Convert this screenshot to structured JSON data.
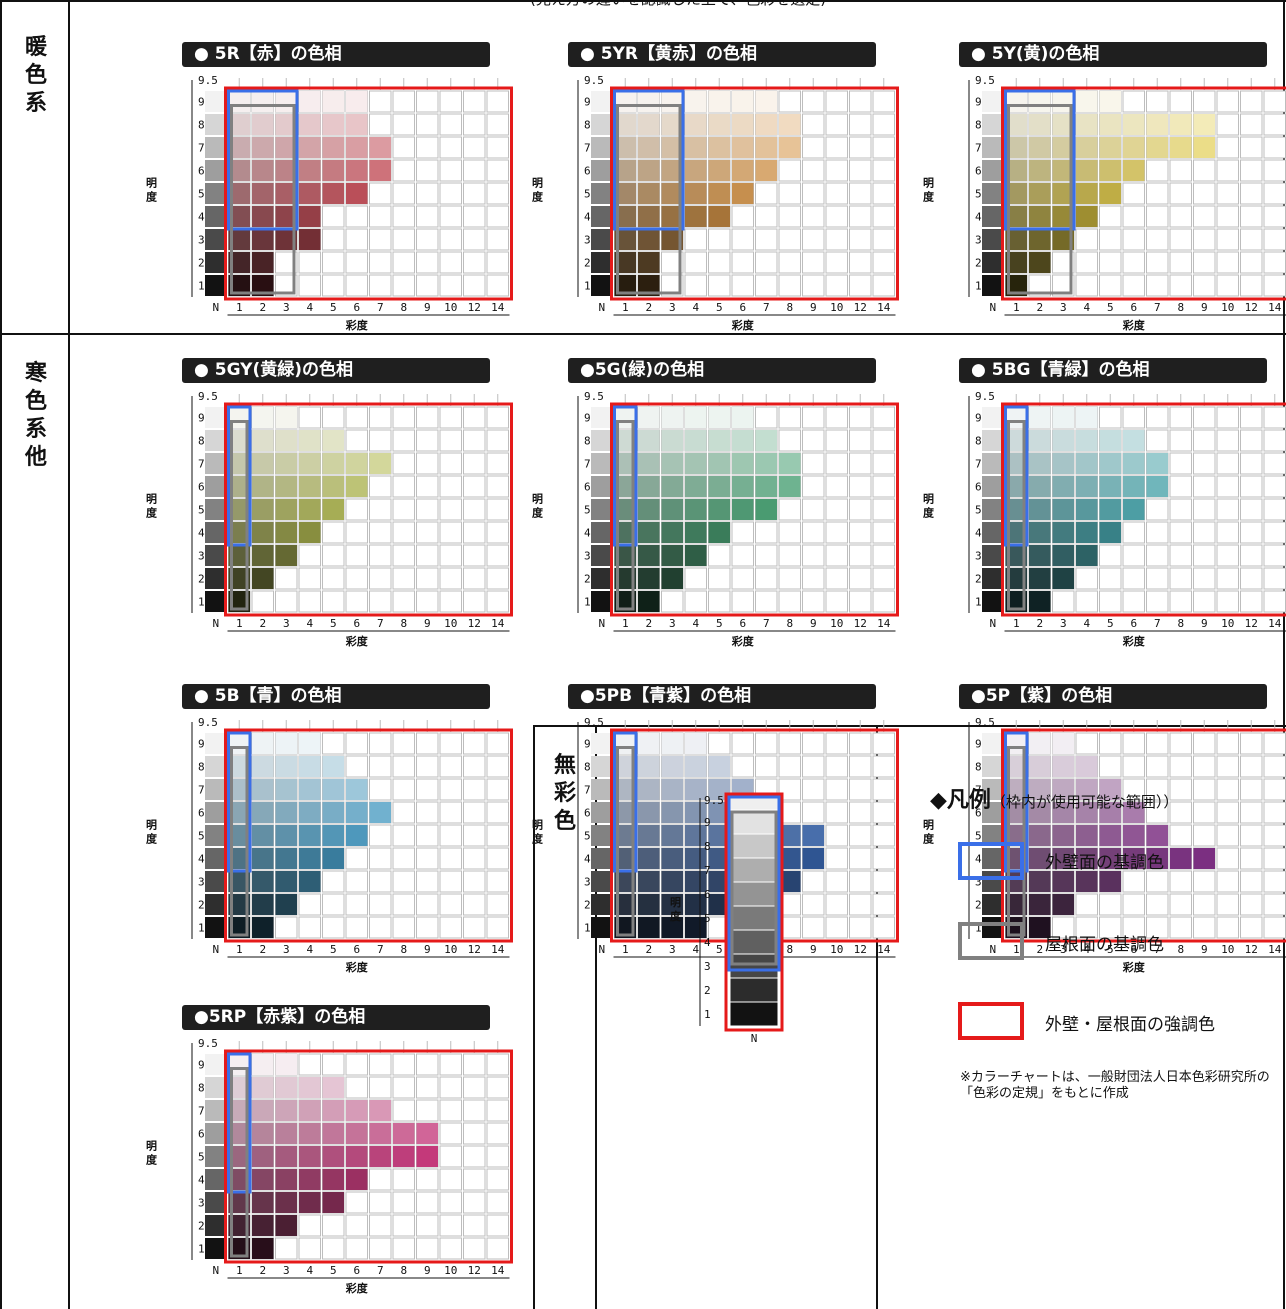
{
  "header_partial": "(見え方の違いを認識した上で、色彩を選定)",
  "sections": {
    "warm": "暖色系",
    "cool": "寒色系他",
    "neutral": "無彩色"
  },
  "axis": {
    "y_label": "明度",
    "x_label": "彩度",
    "y_ticks": [
      "9.5",
      "9",
      "8",
      "7",
      "6",
      "5",
      "4",
      "3",
      "2",
      "1"
    ],
    "x_ticks": [
      "N",
      "1",
      "2",
      "3",
      "4",
      "5",
      "6",
      "7",
      "8",
      "9",
      "10",
      "12",
      "14"
    ]
  },
  "colors": {
    "exterior_base": "#3a6fe8",
    "roof_base": "#808080",
    "accent": "#e51a1a"
  },
  "legend": {
    "title": "◆凡例",
    "note": "（枠内が使用可能な範囲））",
    "items": [
      {
        "label": "外壁面の基調色",
        "color": "#3a6fe8"
      },
      {
        "label": "屋根面の基調色",
        "color": "#808080"
      },
      {
        "label": "外壁・屋根面の強調色",
        "color": "#e51a1a"
      }
    ],
    "footnote": "※カラーチャートは、一般財団法人日本色彩研究所の「色彩の定規」をもとに作成"
  },
  "chart_data": [
    {
      "type": "heatmap",
      "title": "● 5R【赤】の色相",
      "hue_color": "#d21f2f",
      "max_chroma": [
        2,
        2,
        4,
        4,
        6,
        7,
        7,
        6,
        6
      ],
      "ranges": {
        "exterior": {
          "chroma": [
            0.5,
            2.5
          ],
          "value": [
            3.5,
            9
          ]
        },
        "roof": {
          "chroma": [
            0.5,
            2.5
          ],
          "value": [
            0.5,
            8.5
          ]
        },
        "accent": {
          "chroma": [
            0.5,
            14
          ],
          "value": [
            0.5,
            9
          ]
        }
      }
    },
    {
      "type": "heatmap",
      "title": "● 5YR【黄赤】の色相",
      "hue_color": "#e78a1c",
      "max_chroma": [
        2,
        2,
        3,
        5,
        6,
        7,
        8,
        8,
        7
      ],
      "ranges": {
        "exterior": {
          "chroma": [
            0.5,
            2.5
          ],
          "value": [
            3.5,
            9
          ]
        },
        "roof": {
          "chroma": [
            0.5,
            2.5
          ],
          "value": [
            0.5,
            8.5
          ]
        },
        "accent": {
          "chroma": [
            0.5,
            14
          ],
          "value": [
            0.5,
            9
          ]
        }
      }
    },
    {
      "type": "heatmap",
      "title": "● 5Y(黄)の色相",
      "hue_color": "#e6c500",
      "max_chroma": [
        1,
        2,
        3,
        4,
        5,
        6,
        9,
        9,
        5
      ],
      "ranges": {
        "exterior": {
          "chroma": [
            0.5,
            2.5
          ],
          "value": [
            3.5,
            9
          ]
        },
        "roof": {
          "chroma": [
            0.5,
            2.5
          ],
          "value": [
            0.5,
            8.5
          ]
        },
        "accent": {
          "chroma": [
            0.5,
            14
          ],
          "value": [
            0.5,
            9
          ]
        }
      }
    },
    {
      "type": "heatmap",
      "title": "● 5GY(黄緑)の色相",
      "hue_color": "#b8c41f",
      "max_chroma": [
        1,
        2,
        3,
        4,
        5,
        6,
        7,
        5,
        3
      ],
      "ranges": {
        "exterior": {
          "chroma": [
            0.5,
            2
          ],
          "value": [
            3.5,
            9
          ]
        },
        "roof": {
          "chroma": [
            0.5,
            2
          ],
          "value": [
            0.5,
            8.5
          ]
        },
        "accent": {
          "chroma": [
            0.5,
            14
          ],
          "value": [
            0.5,
            9
          ]
        }
      }
    },
    {
      "type": "heatmap",
      "title": "●5G(緑)の色相",
      "hue_color": "#1f9a5a",
      "max_chroma": [
        2,
        3,
        4,
        5,
        7,
        8,
        8,
        7,
        6
      ],
      "ranges": {
        "exterior": {
          "chroma": [
            0.5,
            2
          ],
          "value": [
            3.5,
            9
          ]
        },
        "roof": {
          "chroma": [
            0.5,
            2
          ],
          "value": [
            0.5,
            8.5
          ]
        },
        "accent": {
          "chroma": [
            0.5,
            14
          ],
          "value": [
            0.5,
            9
          ]
        }
      }
    },
    {
      "type": "heatmap",
      "title": "● 5BG【青緑】の色相",
      "hue_color": "#1aa3ad",
      "max_chroma": [
        2,
        3,
        4,
        5,
        6,
        7,
        7,
        6,
        4
      ],
      "ranges": {
        "exterior": {
          "chroma": [
            0.5,
            2
          ],
          "value": [
            3.5,
            9
          ]
        },
        "roof": {
          "chroma": [
            0.5,
            2
          ],
          "value": [
            0.5,
            8.5
          ]
        },
        "accent": {
          "chroma": [
            0.5,
            14
          ],
          "value": [
            0.5,
            9
          ]
        }
      }
    },
    {
      "type": "heatmap",
      "title": "● 5B【青】の色相",
      "hue_color": "#1c9ad6",
      "max_chroma": [
        2,
        3,
        4,
        5,
        6,
        7,
        6,
        5,
        4
      ],
      "ranges": {
        "exterior": {
          "chroma": [
            0.5,
            2
          ],
          "value": [
            3.5,
            9
          ]
        },
        "roof": {
          "chroma": [
            0.5,
            2
          ],
          "value": [
            0.5,
            8.5
          ]
        },
        "accent": {
          "chroma": [
            0.5,
            14
          ],
          "value": [
            0.5,
            9
          ]
        }
      }
    },
    {
      "type": "heatmap",
      "title": "●5PB【青紫】の色相",
      "hue_color": "#2a5aa8",
      "max_chroma": [
        4,
        6,
        8,
        9,
        9,
        7,
        6,
        5,
        4
      ],
      "ranges": {
        "exterior": {
          "chroma": [
            0.5,
            2
          ],
          "value": [
            3.5,
            9
          ]
        },
        "roof": {
          "chroma": [
            0.5,
            2
          ],
          "value": [
            0.5,
            8.5
          ]
        },
        "accent": {
          "chroma": [
            0.5,
            14
          ],
          "value": [
            0.5,
            9
          ]
        }
      }
    },
    {
      "type": "heatmap",
      "title": "●5P【紫】の色相",
      "hue_color": "#8b2a92",
      "max_chroma": [
        2,
        3,
        5,
        9,
        7,
        6,
        5,
        4,
        3
      ],
      "ranges": {
        "exterior": {
          "chroma": [
            0.5,
            2
          ],
          "value": [
            3.5,
            9
          ]
        },
        "roof": {
          "chroma": [
            0.5,
            2
          ],
          "value": [
            0.5,
            8.5
          ]
        },
        "accent": {
          "chroma": [
            0.5,
            14
          ],
          "value": [
            0.5,
            9
          ]
        }
      }
    },
    {
      "type": "heatmap",
      "title": "●5RP【赤紫】の色相",
      "hue_color": "#c8166a",
      "max_chroma": [
        2,
        3,
        5,
        6,
        9,
        9,
        7,
        5,
        3
      ],
      "ranges": {
        "exterior": {
          "chroma": [
            0.5,
            2
          ],
          "value": [
            3.5,
            9
          ]
        },
        "roof": {
          "chroma": [
            0.5,
            2
          ],
          "value": [
            0.5,
            8.5
          ]
        },
        "accent": {
          "chroma": [
            0.5,
            14
          ],
          "value": [
            0.5,
            9
          ]
        }
      }
    },
    {
      "type": "heatmap",
      "title": "無彩色",
      "values": [
        "9.5",
        "9",
        "8",
        "7",
        "6",
        "5",
        "4",
        "3",
        "2",
        "1"
      ],
      "x": "N",
      "ranges": {
        "exterior": {
          "value": [
            3,
            9.5
          ]
        },
        "roof": {
          "value": [
            3,
            8.5
          ]
        },
        "accent": {
          "value": [
            0.5,
            9.5
          ]
        }
      }
    }
  ]
}
